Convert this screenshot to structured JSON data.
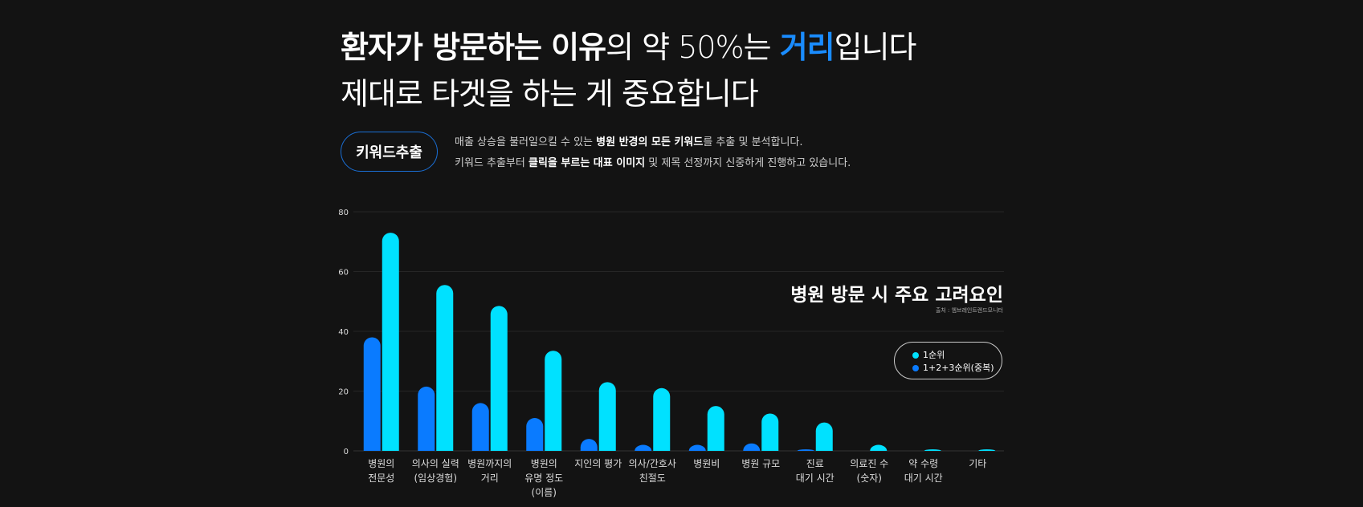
{
  "headline": {
    "line1_bold": "환자가 방문하는 이유",
    "line1_mid": "의 약 50%는 ",
    "line1_accent": "거리",
    "line1_end": "입니다",
    "line2": "제대로 타겟을 하는 게 중요합니다"
  },
  "badge": "키워드추출",
  "description": {
    "line1_a": "매출 상승을 불러일으킬 수 있는 ",
    "line1_b": "병원 반경의 모든 키워드",
    "line1_c": "를 추출 및 분석합니다.",
    "line2_a": "키워드 추출부터 ",
    "line2_b": "클릭을 부르는 대표 이미지",
    "line2_c": " 및 제목 선정까지 신중하게 진행하고 있습니다."
  },
  "colors": {
    "accent": "#1a8cff",
    "series_dark": "#0a7bff",
    "series_light": "#00e1ff"
  },
  "chart_data": {
    "type": "bar",
    "title": "병원 방문 시 주요 고려요인",
    "source": "출처 : 엠브레인트렌드모니터",
    "ylim": [
      0,
      80
    ],
    "yticks": [
      "0",
      "20",
      "40",
      "60",
      "80"
    ],
    "grid": true,
    "legend_position": "right",
    "categories": [
      [
        "병원의",
        "전문성"
      ],
      [
        "의사의 실력",
        "(임상경험)"
      ],
      [
        "병원까지의",
        "거리"
      ],
      [
        "병원의",
        "유명 정도",
        "(이름)"
      ],
      [
        "지인의 평가"
      ],
      [
        "의사/간호사",
        "친절도"
      ],
      [
        "병원비"
      ],
      [
        "병원 규모"
      ],
      [
        "진료",
        "대기 시간"
      ],
      [
        "의료진 수",
        "(숫자)"
      ],
      [
        "약 수령",
        "대기 시간"
      ],
      [
        "기타"
      ]
    ],
    "series": [
      {
        "name": "1+2+3순위(중복)",
        "color": "#0a7bff",
        "values": [
          38,
          21.5,
          16,
          11,
          4,
          2,
          2,
          2.5,
          0.5,
          0,
          0,
          0
        ]
      },
      {
        "name": "1순위",
        "color": "#00e1ff",
        "values": [
          73,
          55.5,
          48.5,
          33.5,
          23,
          21,
          15,
          12.5,
          9.5,
          2,
          0.5,
          0.5
        ]
      }
    ],
    "legend": [
      "1순위",
      "1+2+3순위(중복)"
    ]
  }
}
